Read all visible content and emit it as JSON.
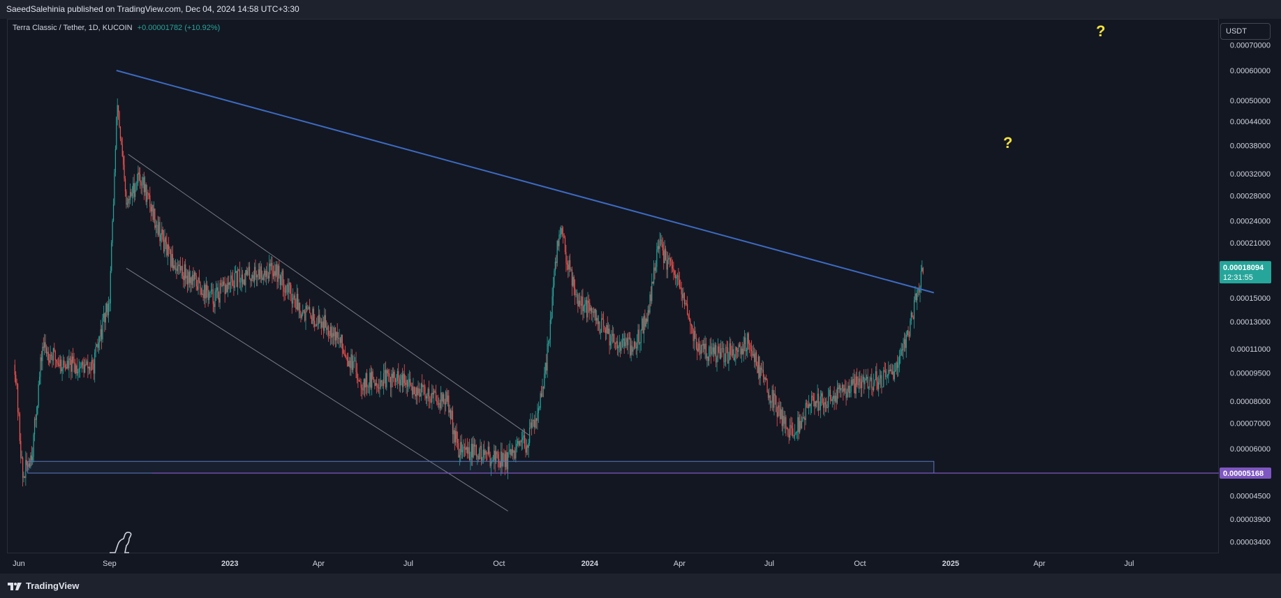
{
  "header": {
    "published_line": "SaeedSalehinia published on TradingView.com, Dec 04, 2024 14:58 UTC+3:30"
  },
  "legend": {
    "symbol": "Terra Classic / Tether, 1D, KUCOIN",
    "change": "+0.00001782 (+10.92%)"
  },
  "price_scale": {
    "currency": "USDT",
    "ticks": [
      "0.00070000",
      "0.00060000",
      "0.00050000",
      "0.00044000",
      "0.00038000",
      "0.00032000",
      "0.00028000",
      "0.00024000",
      "0.00021000",
      "0.00015000",
      "0.00013000",
      "0.00011000",
      "0.00009500",
      "0.00008000",
      "0.00007000",
      "0.00006000",
      "0.00004500",
      "0.00003900",
      "0.00003400"
    ],
    "last_price": "0.00018094",
    "countdown": "12:31:55",
    "level_label": "0.00005168",
    "last_price_color": "#26a69a",
    "level_color": "#7e57c2"
  },
  "time_axis": {
    "ticks": [
      "Jun",
      "Sep",
      "2023",
      "Apr",
      "Jul",
      "Oct",
      "2024",
      "Apr",
      "Jul",
      "Oct",
      "2025",
      "Apr",
      "Jul"
    ],
    "bold": [
      "2023",
      "2024",
      "2025"
    ]
  },
  "annotations": {
    "question_mark_1": "?",
    "question_mark_2": "?"
  },
  "footer": {
    "brand": "TradingView"
  },
  "colors": {
    "background": "#131722",
    "up": "#26a69a",
    "down": "#ef5350",
    "trendline": "#3d6bc1",
    "channel": "#787b86",
    "support_zone": "#5b7bc2",
    "support_line": "#7e57c2"
  },
  "chart_data": {
    "type": "candlestick",
    "scale": "log",
    "title": "Terra Classic / Tether, 1D, KUCOIN",
    "x_range": [
      "2022-05-20",
      "2025-09-30"
    ],
    "y_range": [
      3.1e-05,
      7.5e-05
    ],
    "ohlc_close_path": [
      [
        "2022-05-28",
        0.0001
      ],
      [
        "2022-06-05",
        5e-05
      ],
      [
        "2022-06-15",
        6e-05
      ],
      [
        "2022-06-25",
        0.000112
      ],
      [
        "2022-07-15",
        0.0001
      ],
      [
        "2022-08-15",
        9.8e-05
      ],
      [
        "2022-09-01",
        0.00015
      ],
      [
        "2022-09-09",
        0.0005
      ],
      [
        "2022-09-18",
        0.00026
      ],
      [
        "2022-10-01",
        0.00032
      ],
      [
        "2022-11-01",
        0.00019
      ],
      [
        "2022-12-15",
        0.00015
      ],
      [
        "2023-01-10",
        0.00017
      ],
      [
        "2023-02-15",
        0.00018
      ],
      [
        "2023-03-15",
        0.00014
      ],
      [
        "2023-04-15",
        0.000125
      ],
      [
        "2023-05-15",
        9e-05
      ],
      [
        "2023-06-15",
        9.2e-05
      ],
      [
        "2023-07-15",
        8.5e-05
      ],
      [
        "2023-08-10",
        8e-05
      ],
      [
        "2023-08-20",
        6e-05
      ],
      [
        "2023-09-15",
        5.8e-05
      ],
      [
        "2023-10-10",
        5.6e-05
      ],
      [
        "2023-10-30",
        6.3e-05
      ],
      [
        "2023-11-15",
        8.5e-05
      ],
      [
        "2023-12-01",
        0.00023
      ],
      [
        "2023-12-20",
        0.00015
      ],
      [
        "2024-01-20",
        0.00012
      ],
      [
        "2024-02-15",
        0.00011
      ],
      [
        "2024-03-01",
        0.00014
      ],
      [
        "2024-03-10",
        0.00021
      ],
      [
        "2024-04-01",
        0.00016
      ],
      [
        "2024-04-20",
        0.00011
      ],
      [
        "2024-05-15",
        0.000105
      ],
      [
        "2024-06-10",
        0.000115
      ],
      [
        "2024-07-05",
        8e-05
      ],
      [
        "2024-07-25",
        6.5e-05
      ],
      [
        "2024-08-10",
        7.8e-05
      ],
      [
        "2024-09-01",
        8.2e-05
      ],
      [
        "2024-10-01",
        9e-05
      ],
      [
        "2024-11-01",
        9.2e-05
      ],
      [
        "2024-11-20",
        0.000125
      ],
      [
        "2024-12-04",
        0.000181
      ]
    ],
    "last_price": 0.00018094,
    "change": "+0.00001782 (+10.92%)",
    "drawings": {
      "descending_trendline": [
        [
          "2022-09-08",
          0.0006
        ],
        [
          "2024-12-15",
          0.000155
        ]
      ],
      "channel_upper": [
        [
          "2022-09-20",
          0.00036
        ],
        [
          "2023-11-01",
          6.5e-05
        ]
      ],
      "channel_lower": [
        [
          "2022-09-18",
          0.00018
        ],
        [
          "2023-10-10",
          4.1e-05
        ]
      ],
      "support_zone": [
        [
          "2022-06-10",
          5.168e-05
        ],
        [
          "2024-12-15",
          5.55e-05
        ]
      ],
      "support_line": 5.168e-05
    }
  }
}
